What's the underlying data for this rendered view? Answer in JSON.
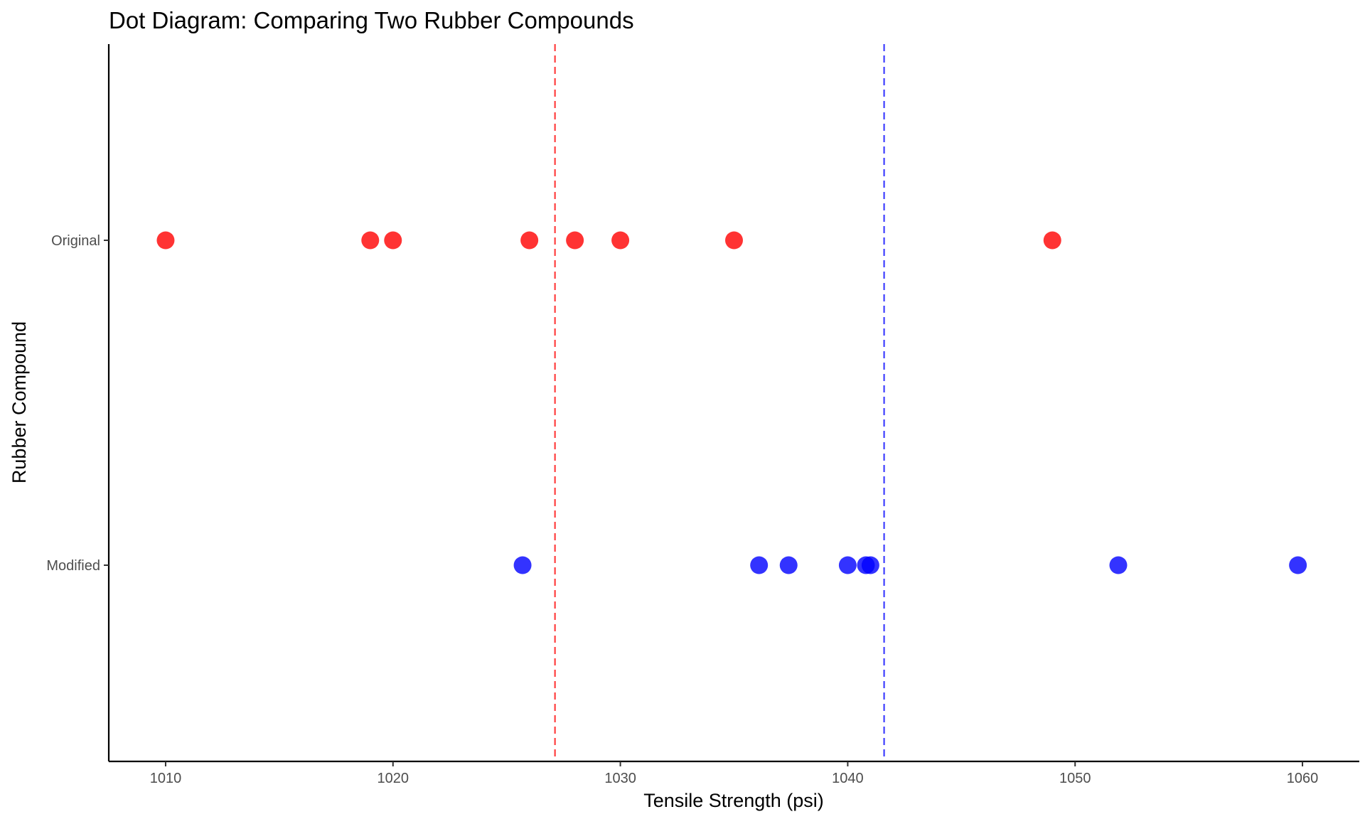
{
  "chart_data": {
    "type": "scatter",
    "title": "Dot Diagram: Comparing Two Rubber Compounds",
    "xlabel": "Tensile Strength (psi)",
    "ylabel": "Rubber Compound",
    "xlim": [
      1007.5,
      1062.5
    ],
    "x_ticks": [
      1010,
      1020,
      1030,
      1040,
      1050,
      1060
    ],
    "categories": [
      "Original",
      "Modified"
    ],
    "grid": false,
    "legend": "none",
    "series": [
      {
        "category": "Original",
        "color": "#ff0000",
        "values": [
          1010,
          1019,
          1020,
          1026,
          1028,
          1030,
          1035,
          1049
        ]
      },
      {
        "category": "Modified",
        "color": "#0000ff",
        "values": [
          1025.7,
          1036.1,
          1037.4,
          1040,
          1040.8,
          1041,
          1051.9,
          1059.8
        ]
      }
    ],
    "reference_lines": [
      {
        "category": "Original",
        "x": 1027.125,
        "color": "#ff0000",
        "style": "dashed"
      },
      {
        "category": "Modified",
        "x": 1041.6,
        "color": "#0000ff",
        "style": "dashed"
      }
    ]
  }
}
